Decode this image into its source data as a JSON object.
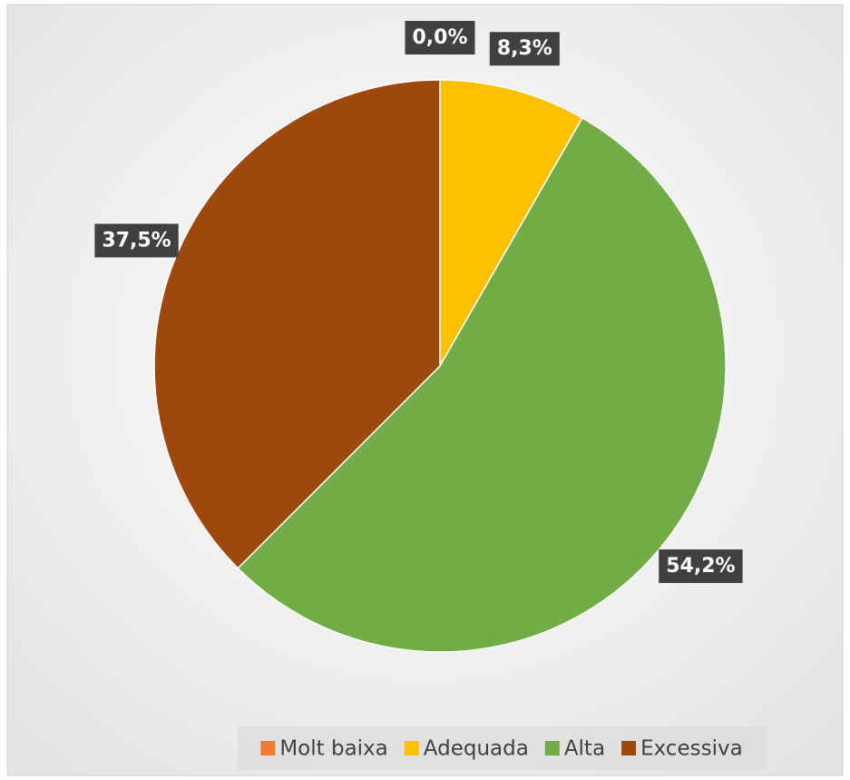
{
  "chart_data": {
    "type": "pie",
    "categories": [
      "Molt baixa",
      "Adequada",
      "Alta",
      "Excessiva"
    ],
    "values": [
      0.0,
      8.3,
      54.2,
      37.5
    ],
    "value_labels": [
      "0,0%",
      "8,3%",
      "54,2%",
      "37,5%"
    ],
    "colors": [
      "#ed7d31",
      "#ffc000",
      "#70ad47",
      "#9e480e"
    ],
    "legend": "bottom"
  }
}
